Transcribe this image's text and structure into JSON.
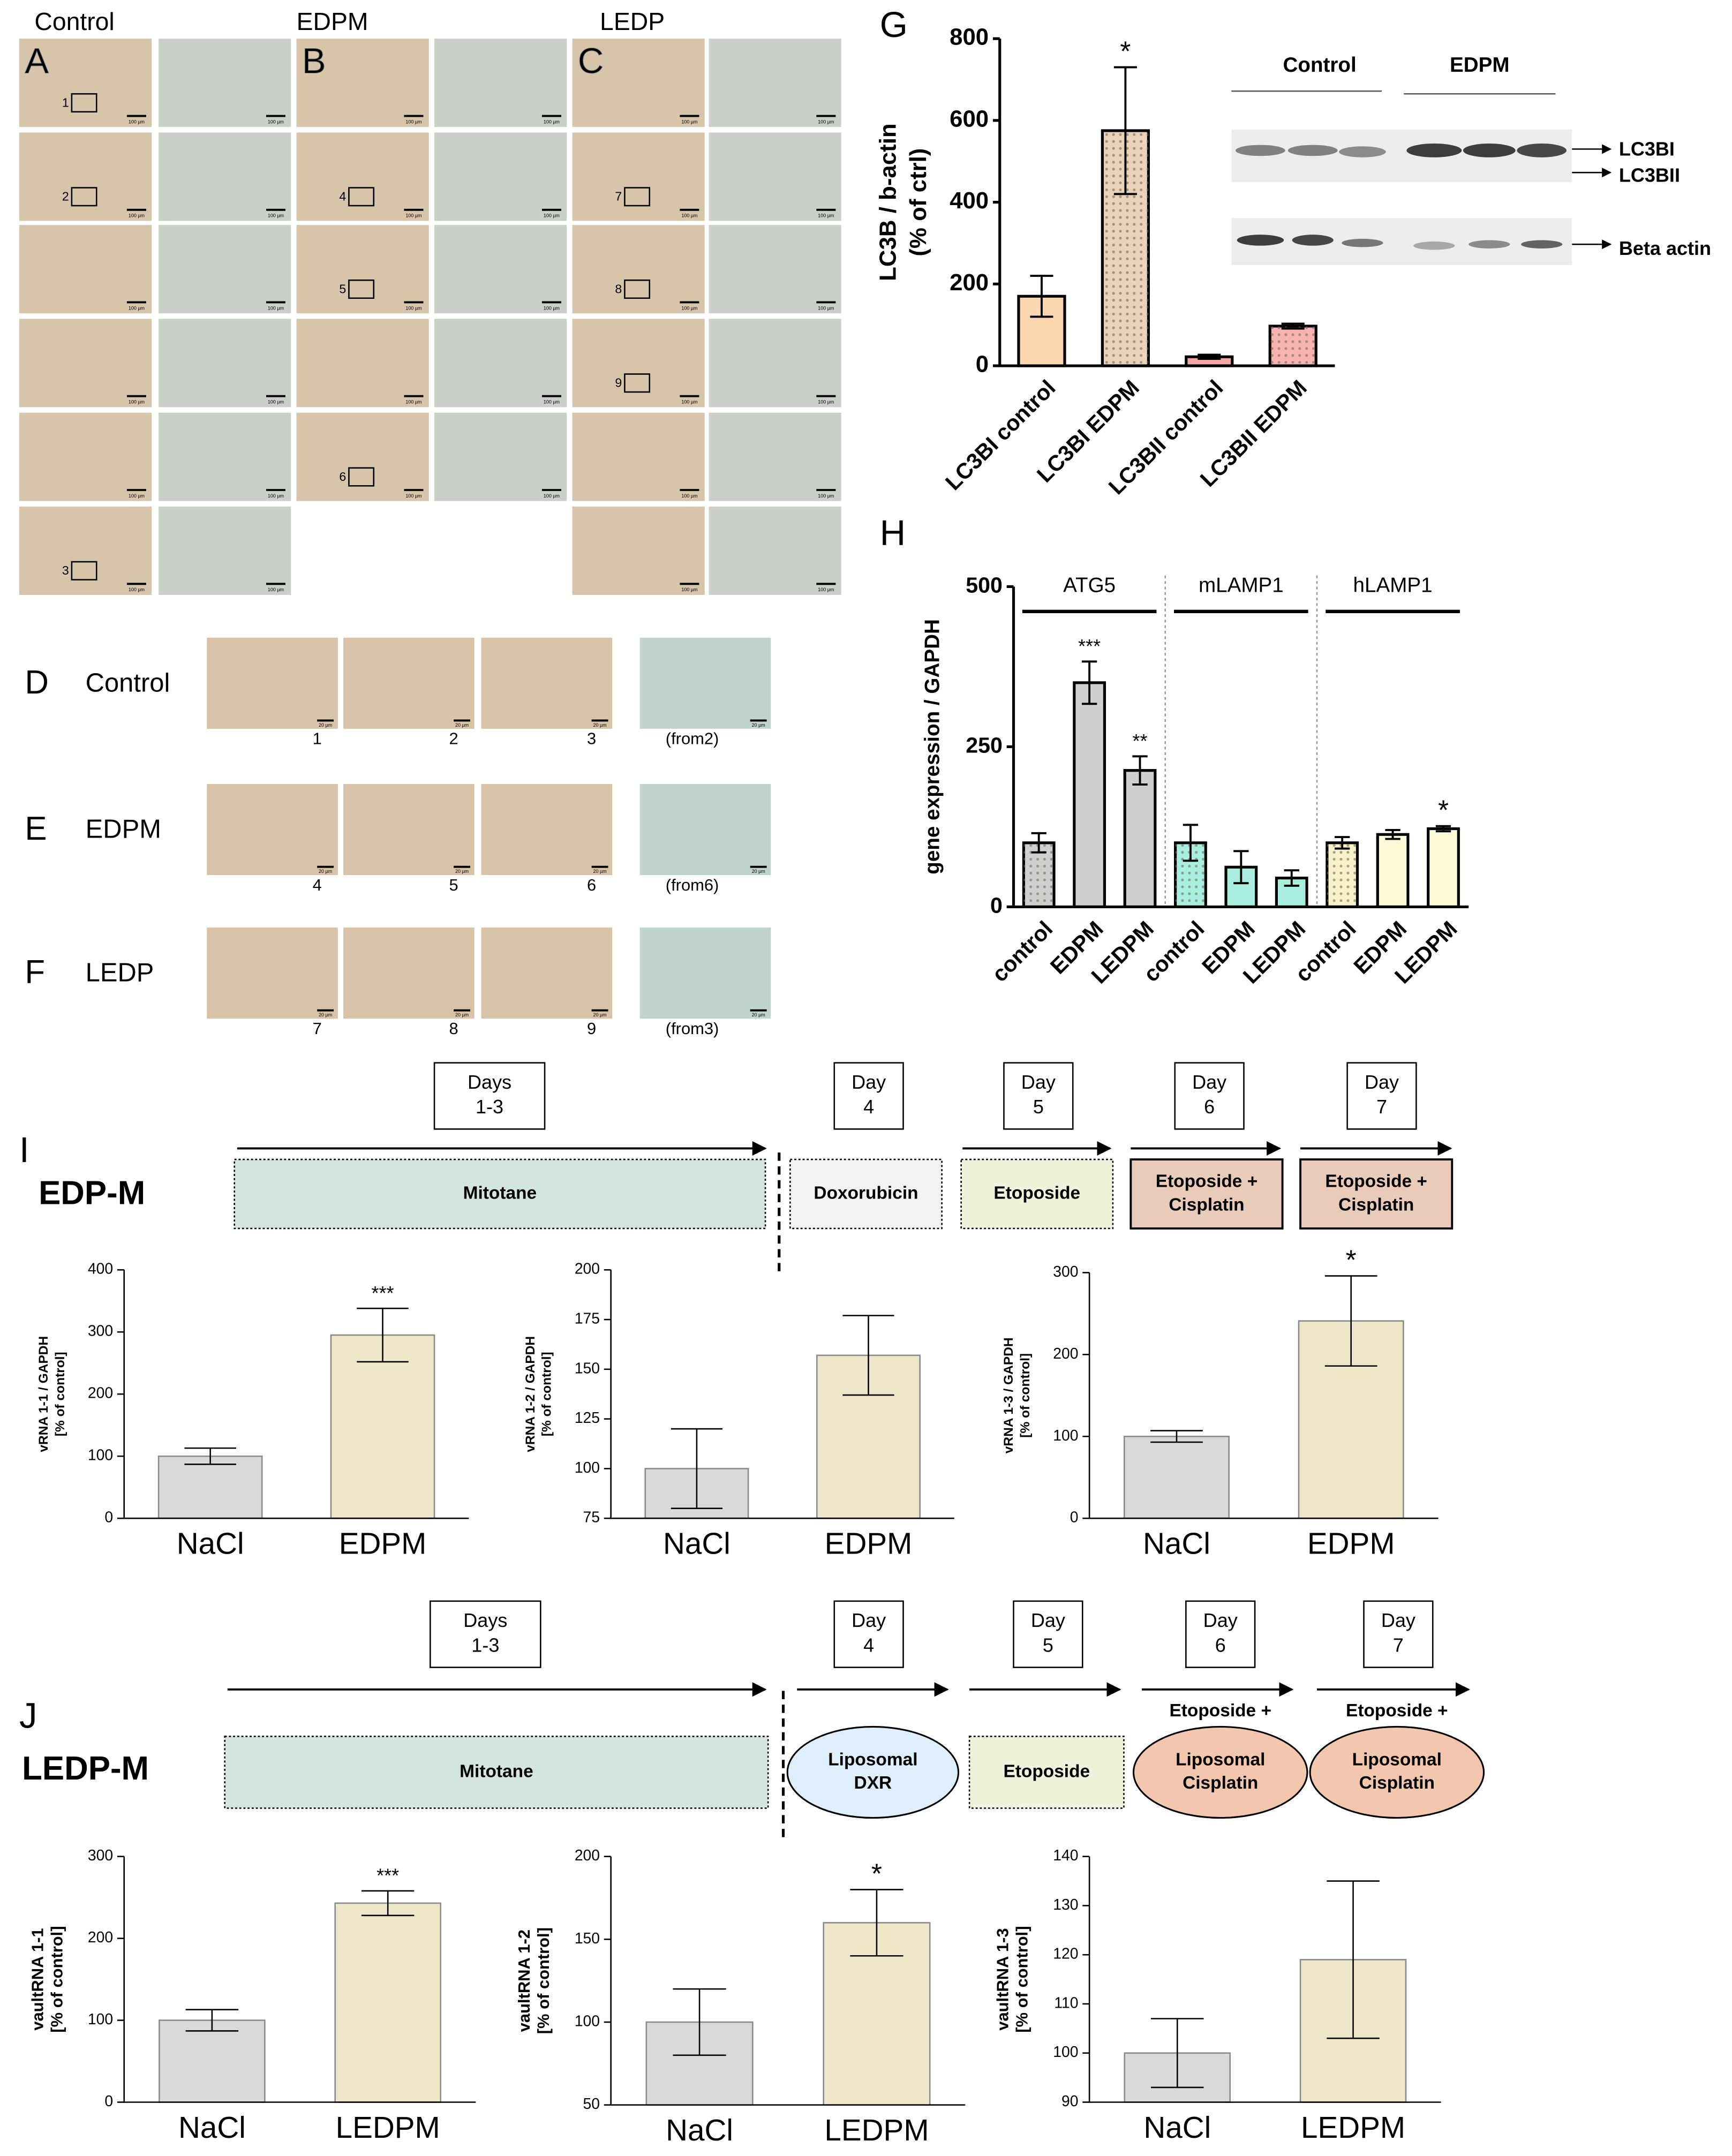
{
  "histology": {
    "groups": [
      {
        "name": "Control",
        "panel": "A",
        "boxes": [
          "1",
          "2",
          "3"
        ]
      },
      {
        "name": "EDPM",
        "panel": "B",
        "boxes": [
          "4",
          "5",
          "6"
        ]
      },
      {
        "name": "LEDP",
        "panel": "C",
        "boxes": [
          "7",
          "8",
          "9"
        ]
      }
    ],
    "scale": "100 µm",
    "details": [
      {
        "panel": "D",
        "name": "Control",
        "labels": [
          "1",
          "2",
          "3",
          "(from2)"
        ]
      },
      {
        "panel": "E",
        "name": "EDPM",
        "labels": [
          "4",
          "5",
          "6",
          "(from6)"
        ]
      },
      {
        "panel": "F",
        "name": "LEDP",
        "labels": [
          "7",
          "8",
          "9",
          "(from3)"
        ]
      }
    ],
    "detail_scale": "20 µm"
  },
  "blot": {
    "groups": [
      "Control",
      "EDPM"
    ],
    "bands": [
      "LC3BI",
      "LC3BII",
      "Beta actin"
    ]
  },
  "chart_data": [
    {
      "type": "bar",
      "panel": "G",
      "ylabel": [
        "LC3B / b-actin",
        "(% of ctrl)"
      ],
      "categories": [
        "LC3BI control",
        "LC3BI EDPM",
        "LC3BII control",
        "LC3BII EDPM"
      ],
      "values": [
        170,
        575,
        22,
        97
      ],
      "errors": [
        50,
        155,
        5,
        6
      ],
      "colors": [
        "#fcd6b0",
        "#ead3b9",
        "#f5a3a3",
        "#f7b3b3"
      ],
      "hatched": [
        false,
        true,
        false,
        true
      ],
      "annotations": [
        null,
        "*",
        null,
        null
      ],
      "ylim": [
        0,
        800
      ],
      "yticks": [
        0,
        200,
        400,
        600,
        800
      ]
    },
    {
      "type": "bar",
      "panel": "H",
      "ylabel": [
        "gene expression / GAPDH"
      ],
      "categories": [
        "control",
        "EDPM",
        "LEDPM",
        "control",
        "EDPM",
        "LEDPM",
        "control",
        "EDPM",
        "LEDPM"
      ],
      "values": [
        100,
        350,
        213,
        100,
        62,
        45,
        100,
        113,
        122
      ],
      "errors": [
        15,
        33,
        22,
        28,
        25,
        12,
        9,
        7,
        4
      ],
      "colors": [
        "#cfcfcf",
        "#cfcfcf",
        "#cfcfcf",
        "#a8efe0",
        "#a8efe0",
        "#a8efe0",
        "#f6f1c9",
        "#fefcd8",
        "#fefcd8"
      ],
      "hatched": [
        true,
        false,
        false,
        true,
        false,
        false,
        true,
        false,
        false
      ],
      "annotations": [
        null,
        "***",
        "**",
        null,
        null,
        null,
        null,
        null,
        "*"
      ],
      "groups": [
        {
          "name": "ATG5",
          "color": "#8a8a8a"
        },
        {
          "name": "mLAMP1",
          "color": "#1a9a7a"
        },
        {
          "name": "hLAMP1",
          "color": "#a8923a"
        }
      ],
      "ylim": [
        0,
        500
      ],
      "yticks": [
        0,
        250,
        500
      ]
    },
    {
      "type": "bar",
      "ylabel": [
        "vRNA 1-1 / GAPDH",
        "[% of control]"
      ],
      "categories": [
        "NaCl",
        "EDPM"
      ],
      "values": [
        100,
        295
      ],
      "errors": [
        13,
        43
      ],
      "colors": [
        "#d9d9d9",
        "#eee6c8"
      ],
      "annotations": [
        null,
        "***"
      ],
      "ylim": [
        0,
        400
      ],
      "yticks": [
        0,
        100,
        200,
        300,
        400
      ]
    },
    {
      "type": "bar",
      "ylabel": [
        "vRNA 1-2 / GAPDH",
        "[% of control]"
      ],
      "categories": [
        "NaCl",
        "EDPM"
      ],
      "values": [
        100,
        157
      ],
      "errors": [
        20,
        20
      ],
      "colors": [
        "#d9d9d9",
        "#eee6c8"
      ],
      "annotations": [
        null,
        null
      ],
      "ylim": [
        75,
        200
      ],
      "yticks": [
        75,
        100,
        125,
        150,
        175,
        200
      ]
    },
    {
      "type": "bar",
      "ylabel": [
        "vRNA 1-3 / GAPDH",
        "[% of control]"
      ],
      "categories": [
        "NaCl",
        "EDPM"
      ],
      "values": [
        100,
        241
      ],
      "errors": [
        7,
        55
      ],
      "colors": [
        "#d9d9d9",
        "#eee6c8"
      ],
      "annotations": [
        null,
        "*"
      ],
      "ylim": [
        0,
        300
      ],
      "yticks": [
        0,
        100,
        200,
        300
      ]
    },
    {
      "type": "bar",
      "ylabel": [
        "vaultRNA 1-1",
        "[% of control]"
      ],
      "categories": [
        "NaCl",
        "LEDPM"
      ],
      "values": [
        100,
        243
      ],
      "errors": [
        13,
        15
      ],
      "colors": [
        "#d9d9d9",
        "#eee6c8"
      ],
      "annotations": [
        null,
        "***"
      ],
      "ylim": [
        0,
        300
      ],
      "yticks": [
        0,
        100,
        200,
        300
      ]
    },
    {
      "type": "bar",
      "ylabel": [
        "vaultRNA 1-2",
        "[% of control]"
      ],
      "categories": [
        "NaCl",
        "LEDPM"
      ],
      "values": [
        100,
        160
      ],
      "errors": [
        20,
        20
      ],
      "colors": [
        "#d9d9d9",
        "#eee6c8"
      ],
      "annotations": [
        null,
        "*"
      ],
      "ylim": [
        50,
        200
      ],
      "yticks": [
        50,
        100,
        150,
        200
      ]
    },
    {
      "type": "bar",
      "ylabel": [
        "vaultRNA 1-3",
        "[% of control]"
      ],
      "categories": [
        "NaCl",
        "LEDPM"
      ],
      "values": [
        100,
        119
      ],
      "errors": [
        7,
        16
      ],
      "colors": [
        "#d9d9d9",
        "#eee6c8"
      ],
      "annotations": [
        null,
        null
      ],
      "ylim": [
        90,
        140
      ],
      "yticks": [
        90,
        100,
        110,
        120,
        130,
        140
      ]
    }
  ],
  "timelines": [
    {
      "panel": "I",
      "name": "EDP-M",
      "days": [
        [
          "Days",
          "1-3"
        ],
        [
          "Day",
          "4"
        ],
        [
          "Day",
          "5"
        ],
        [
          "Day",
          "6"
        ],
        [
          "Day",
          "7"
        ]
      ],
      "treatments": [
        [
          "Mitotane"
        ],
        [
          "Doxorubicin"
        ],
        [
          "Etoposide"
        ],
        [
          "Etoposide +",
          "Cisplatin"
        ],
        [
          "Etoposide +",
          "Cisplatin"
        ]
      ],
      "notes": [
        null,
        null,
        null,
        null,
        null
      ]
    },
    {
      "panel": "J",
      "name": "LEDP-M",
      "days": [
        [
          "Days",
          "1-3"
        ],
        [
          "Day",
          "4"
        ],
        [
          "Day",
          "5"
        ],
        [
          "Day",
          "6"
        ],
        [
          "Day",
          "7"
        ]
      ],
      "treatments": [
        [
          "Mitotane"
        ],
        [
          "Liposomal",
          "DXR"
        ],
        [
          "Etoposide"
        ],
        [
          "Liposomal",
          "Cisplatin"
        ],
        [
          "Liposomal",
          "Cisplatin"
        ]
      ],
      "notes": [
        null,
        null,
        null,
        "Etoposide +",
        "Etoposide +"
      ]
    }
  ]
}
